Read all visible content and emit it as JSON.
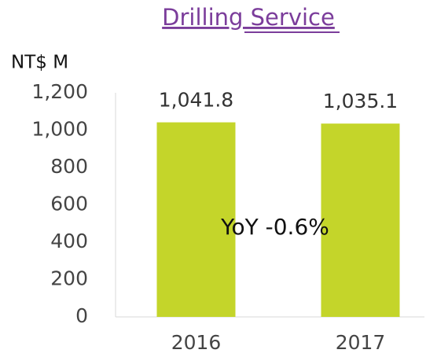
{
  "chart_data": {
    "type": "bar",
    "title": "Drilling Service",
    "y_label": "NT$ M",
    "annotation": "YoY -0.6%",
    "categories": [
      "2016",
      "2017"
    ],
    "values": [
      1041.8,
      1035.1
    ],
    "value_labels": [
      "1,041.8",
      "1,035.1"
    ],
    "color": "#c4d52a",
    "ylim": [
      0,
      1200
    ],
    "yticks": [
      0,
      200,
      400,
      600,
      800,
      {
        "value": 1000,
        "label": "1,000"
      },
      {
        "value": 1200,
        "label": "1,200"
      }
    ],
    "grid": false
  }
}
